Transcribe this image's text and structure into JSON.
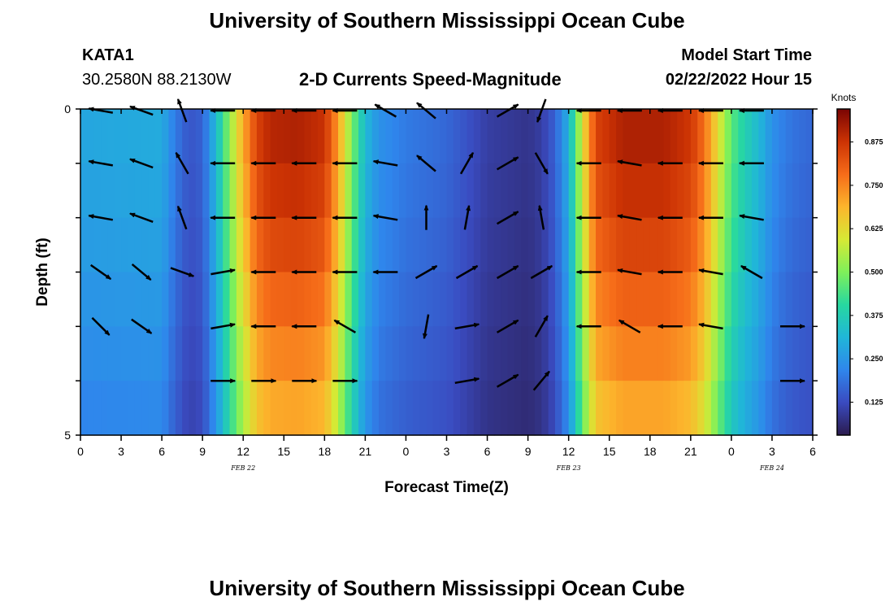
{
  "header": {
    "title": "University of Southern Mississippi Ocean Cube",
    "station": "KATA1",
    "coords": "30.2580N  88.2130W",
    "subtitle": "2-D Currents Speed-Magnitude",
    "model_start_label": "Model Start Time",
    "model_start_value": "02/22/2022 Hour 15"
  },
  "footer": {
    "title": "University of Southern Mississippi Ocean Cube"
  },
  "chart_data": {
    "type": "heatmap",
    "title": "2-D Currents Speed-Magnitude",
    "xlabel": "Forecast Time(Z)",
    "ylabel": "Depth (ft)",
    "x_ticks": [
      "0",
      "3",
      "6",
      "9",
      "12",
      "15",
      "18",
      "21",
      "0",
      "3",
      "6",
      "9",
      "12",
      "15",
      "18",
      "21",
      "0",
      "3",
      "6"
    ],
    "x_range_hours": [
      0,
      54
    ],
    "date_labels": [
      {
        "text": "FEB 22",
        "hour": 12
      },
      {
        "text": "FEB 23",
        "hour": 36
      },
      {
        "text": "FEB 24",
        "hour": 51
      }
    ],
    "y_range": [
      0,
      5
    ],
    "y_tick_labels": [
      "0",
      "5"
    ],
    "depth_layers": [
      0,
      1,
      2,
      3,
      4,
      5
    ],
    "colorbar": {
      "title": "Knots",
      "ticks": [
        "0.125",
        "0.250",
        "0.375",
        "0.500",
        "0.625",
        "0.750",
        "0.875"
      ],
      "range": [
        0.03,
        0.97
      ],
      "colors": [
        "#2b1b4e",
        "#3a4bc0",
        "#2f86ec",
        "#20b6d8",
        "#27d8a0",
        "#7ff05a",
        "#d6e935",
        "#fcb52c",
        "#f66c19",
        "#cc3304",
        "#7a0403"
      ]
    },
    "speed_profile": {
      "hours": [
        0,
        6,
        7,
        8,
        9,
        10,
        11,
        12,
        13,
        14,
        16,
        18,
        19,
        20,
        21,
        22,
        24,
        27,
        30,
        33,
        34,
        35,
        36,
        37,
        38,
        40,
        43,
        45,
        46,
        47,
        48,
        49,
        50,
        51,
        52,
        53,
        54
      ],
      "values": [
        0.28,
        0.29,
        0.2,
        0.14,
        0.16,
        0.32,
        0.52,
        0.7,
        0.85,
        0.9,
        0.91,
        0.88,
        0.72,
        0.5,
        0.32,
        0.24,
        0.2,
        0.17,
        0.1,
        0.08,
        0.1,
        0.16,
        0.3,
        0.6,
        0.85,
        0.91,
        0.91,
        0.87,
        0.78,
        0.62,
        0.46,
        0.38,
        0.32,
        0.24,
        0.2,
        0.18,
        0.17
      ]
    },
    "depth_scale": [
      1.0,
      0.97,
      0.93,
      0.88,
      0.83,
      0.78
    ],
    "arrow_columns": [
      {
        "hour": 1.5,
        "angles": [
          170,
          170,
          170,
          -35,
          -45,
          null
        ]
      },
      {
        "hour": 4.5,
        "angles": [
          160,
          160,
          160,
          -40,
          -35,
          null
        ]
      },
      {
        "hour": 7.5,
        "angles": [
          110,
          120,
          110,
          -20,
          null,
          null
        ]
      },
      {
        "hour": 10.5,
        "angles": [
          180,
          180,
          180,
          10,
          10,
          0
        ]
      },
      {
        "hour": 13.5,
        "angles": [
          180,
          180,
          180,
          180,
          180,
          0
        ]
      },
      {
        "hour": 16.5,
        "angles": [
          180,
          180,
          180,
          180,
          180,
          0
        ]
      },
      {
        "hour": 19.5,
        "angles": [
          180,
          180,
          180,
          180,
          150,
          0
        ]
      },
      {
        "hour": 22.5,
        "angles": [
          150,
          170,
          170,
          180,
          null,
          null
        ]
      },
      {
        "hour": 25.5,
        "angles": [
          140,
          140,
          90,
          30,
          -100,
          null
        ]
      },
      {
        "hour": 28.5,
        "angles": [
          null,
          60,
          80,
          30,
          10,
          10
        ]
      },
      {
        "hour": 31.5,
        "angles": [
          30,
          30,
          30,
          30,
          30,
          30
        ]
      },
      {
        "hour": 34.0,
        "angles": [
          -110,
          -60,
          100,
          30,
          60,
          50
        ]
      },
      {
        "hour": 37.5,
        "angles": [
          180,
          180,
          180,
          180,
          180,
          null
        ]
      },
      {
        "hour": 40.5,
        "angles": [
          180,
          170,
          170,
          170,
          150,
          null
        ]
      },
      {
        "hour": 43.5,
        "angles": [
          180,
          180,
          180,
          180,
          180,
          null
        ]
      },
      {
        "hour": 46.5,
        "angles": [
          180,
          180,
          180,
          170,
          170,
          null
        ]
      },
      {
        "hour": 49.5,
        "angles": [
          180,
          180,
          170,
          150,
          null,
          null
        ]
      },
      {
        "hour": 52.5,
        "angles": [
          null,
          null,
          null,
          null,
          0,
          0
        ]
      }
    ]
  }
}
